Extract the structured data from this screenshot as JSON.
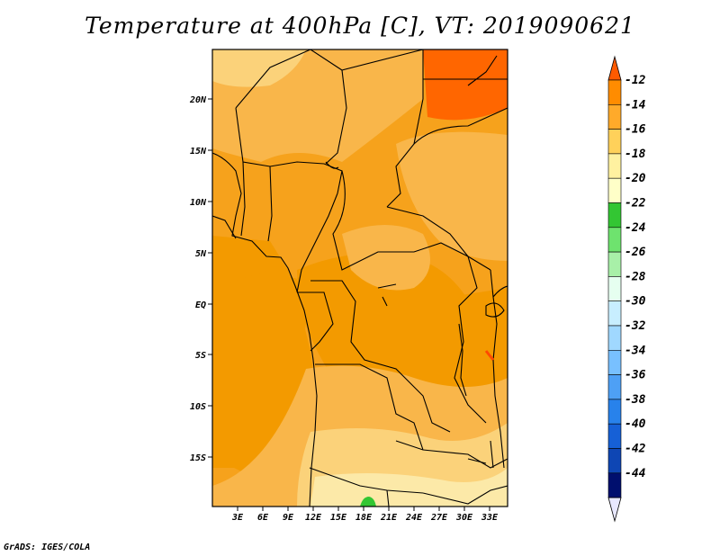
{
  "title": "Temperature at 400hPa [C], VT: 2019090621",
  "credit": "GrADS: IGES/COLA",
  "map": {
    "lat_ticks": [
      "20N",
      "15N",
      "10N",
      "5N",
      "EQ",
      "5S",
      "10S",
      "15S"
    ],
    "lon_ticks": [
      "3E",
      "6E",
      "9E",
      "12E",
      "15E",
      "18E",
      "21E",
      "24E",
      "27E",
      "30E",
      "33E"
    ]
  },
  "colorbar": {
    "labels": [
      "-12",
      "-14",
      "-16",
      "-18",
      "-20",
      "-22",
      "-24",
      "-26",
      "-28",
      "-30",
      "-32",
      "-34",
      "-36",
      "-38",
      "-40",
      "-42",
      "-44"
    ],
    "colors": [
      "#ff5a00",
      "#ff8c00",
      "#ffaa2a",
      "#ffd15a",
      "#fff1a0",
      "#ffffc8",
      "#33c633",
      "#6ee36e",
      "#a8f0a8",
      "#e6fff0",
      "#c8eeff",
      "#a0d8ff",
      "#78c0ff",
      "#4ea0f5",
      "#2882eb",
      "#1660d6",
      "#0e46b4",
      "#000f6e",
      "#e8e8ff"
    ]
  },
  "colors": {
    "ocean_orange": "#f39a00",
    "land_orange": "#f6a21c",
    "light_orange": "#f9b64a",
    "yellow": "#fbd27a",
    "pale_yellow": "#fce9a8",
    "hot": "#ff6600",
    "green": "#33c633"
  }
}
